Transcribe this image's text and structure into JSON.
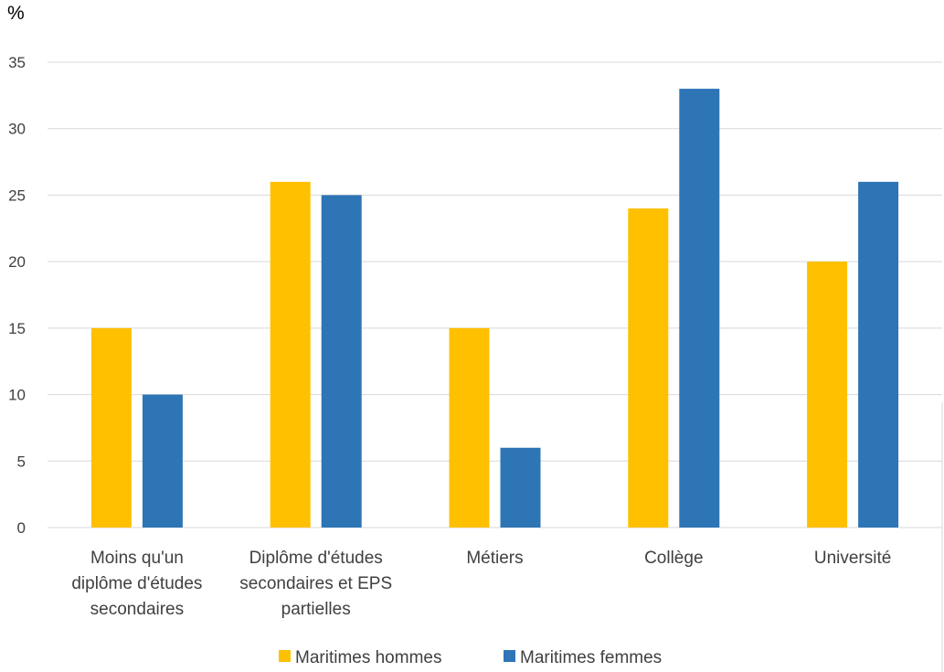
{
  "chart_data": {
    "type": "bar",
    "y_unit_label": "%",
    "categories": [
      [
        "Moins qu'un",
        "diplôme d'études",
        "secondaires"
      ],
      [
        "Diplôme d'études",
        "secondaires et EPS",
        "partielles"
      ],
      [
        "Métiers"
      ],
      [
        "Collège"
      ],
      [
        "Université"
      ]
    ],
    "series": [
      {
        "name": "Maritimes hommes",
        "color": "#FFC000",
        "values": [
          15,
          26,
          15,
          24,
          20
        ]
      },
      {
        "name": "Maritimes femmes",
        "color": "#2E75B6",
        "values": [
          10,
          25,
          6,
          33,
          26
        ]
      }
    ],
    "ylim": [
      0,
      35
    ],
    "yticks": [
      "0",
      "5",
      "10",
      "15",
      "20",
      "25",
      "30",
      "35"
    ],
    "grid": true,
    "legend_position": "bottom"
  }
}
